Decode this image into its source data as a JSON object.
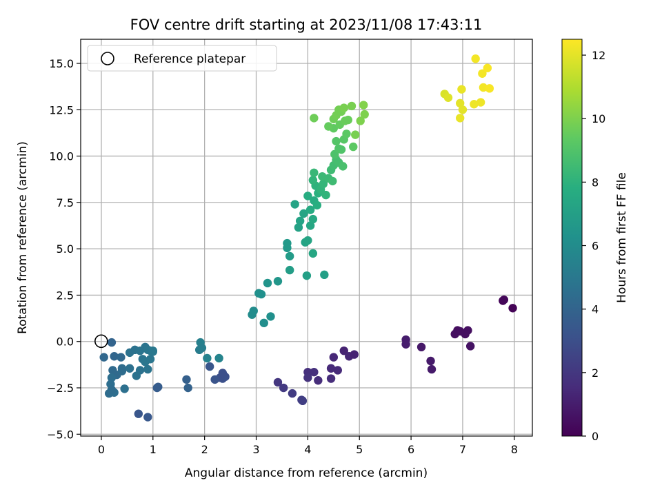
{
  "chart_data": {
    "type": "scatter",
    "title": "FOV centre drift starting at 2023/11/08 17:43:11",
    "xlabel": "Angular distance from reference (arcmin)",
    "ylabel": "Rotation from reference (arcmin)",
    "xlim": [
      -0.4,
      8.35
    ],
    "ylim": [
      -5.1,
      16.3
    ],
    "xticks": [
      0,
      1,
      2,
      3,
      4,
      5,
      6,
      7,
      8
    ],
    "yticks": [
      -5.0,
      -2.5,
      0.0,
      2.5,
      5.0,
      7.5,
      10.0,
      12.5,
      15.0
    ],
    "xtick_labels": [
      "0",
      "1",
      "2",
      "3",
      "4",
      "5",
      "6",
      "7",
      "8"
    ],
    "ytick_labels": [
      "−5.0",
      "−2.5",
      "0.0",
      "2.5",
      "5.0",
      "7.5",
      "10.0",
      "12.5",
      "15.0"
    ],
    "grid": true,
    "legend": {
      "placement": "upper-left",
      "entries": [
        "Reference platepar"
      ]
    },
    "reference_point": {
      "x": 0,
      "y": 0,
      "marker": "open-circle"
    },
    "colorbar": {
      "label": "Hours from first FF file",
      "colormap": "viridis",
      "range": [
        0,
        12.5
      ],
      "ticks": [
        0,
        2,
        4,
        6,
        8,
        10,
        12
      ],
      "tick_labels": [
        "0",
        "2",
        "4",
        "6",
        "8",
        "10",
        "12"
      ]
    },
    "points": [
      {
        "x": 7.78,
        "y": 2.2,
        "h": 0.15
      },
      {
        "x": 7.8,
        "y": 2.25,
        "h": 0.2
      },
      {
        "x": 7.97,
        "y": 1.8,
        "h": 0.1
      },
      {
        "x": 7.1,
        "y": 0.6,
        "h": 0.5
      },
      {
        "x": 7.05,
        "y": 0.4,
        "h": 0.5
      },
      {
        "x": 6.9,
        "y": 0.6,
        "h": 0.45
      },
      {
        "x": 6.85,
        "y": 0.4,
        "h": 0.5
      },
      {
        "x": 6.95,
        "y": 0.55,
        "h": 0.5
      },
      {
        "x": 7.15,
        "y": -0.25,
        "h": 0.6
      },
      {
        "x": 6.2,
        "y": -0.3,
        "h": 0.8
      },
      {
        "x": 6.38,
        "y": -1.05,
        "h": 0.9
      },
      {
        "x": 6.4,
        "y": -1.5,
        "h": 0.9
      },
      {
        "x": 5.9,
        "y": 0.1,
        "h": 0.95
      },
      {
        "x": 5.9,
        "y": -0.15,
        "h": 1.0
      },
      {
        "x": 4.7,
        "y": -0.5,
        "h": 1.2
      },
      {
        "x": 4.8,
        "y": -0.8,
        "h": 1.3
      },
      {
        "x": 4.9,
        "y": -0.7,
        "h": 1.2
      },
      {
        "x": 4.5,
        "y": -0.85,
        "h": 1.4
      },
      {
        "x": 4.45,
        "y": -1.45,
        "h": 1.5
      },
      {
        "x": 4.58,
        "y": -1.55,
        "h": 1.5
      },
      {
        "x": 4.45,
        "y": -2.0,
        "h": 1.6
      },
      {
        "x": 4.2,
        "y": -2.1,
        "h": 1.6
      },
      {
        "x": 4.12,
        "y": -1.65,
        "h": 1.7
      },
      {
        "x": 4.0,
        "y": -1.65,
        "h": 1.7
      },
      {
        "x": 4.0,
        "y": -1.95,
        "h": 1.8
      },
      {
        "x": 3.42,
        "y": -2.2,
        "h": 2.0
      },
      {
        "x": 3.53,
        "y": -2.5,
        "h": 2.1
      },
      {
        "x": 3.7,
        "y": -2.8,
        "h": 2.2
      },
      {
        "x": 3.9,
        "y": -3.2,
        "h": 2.3
      },
      {
        "x": 3.88,
        "y": -3.15,
        "h": 2.3
      },
      {
        "x": 2.4,
        "y": -1.9,
        "h": 3.0
      },
      {
        "x": 2.35,
        "y": -2.0,
        "h": 3.1
      },
      {
        "x": 2.3,
        "y": -1.95,
        "h": 3.0
      },
      {
        "x": 2.35,
        "y": -1.7,
        "h": 3.0
      },
      {
        "x": 2.2,
        "y": -2.05,
        "h": 3.2
      },
      {
        "x": 2.1,
        "y": -1.35,
        "h": 3.3
      },
      {
        "x": 0.72,
        "y": -3.9,
        "h": 3.3
      },
      {
        "x": 0.9,
        "y": -4.08,
        "h": 3.4
      },
      {
        "x": 1.08,
        "y": -2.5,
        "h": 3.6
      },
      {
        "x": 1.1,
        "y": -2.45,
        "h": 3.6
      },
      {
        "x": 1.65,
        "y": -2.05,
        "h": 3.8
      },
      {
        "x": 1.68,
        "y": -2.5,
        "h": 3.9
      },
      {
        "x": 0.2,
        "y": -0.05,
        "h": 4.0
      },
      {
        "x": 0.05,
        "y": -0.85,
        "h": 4.2
      },
      {
        "x": 0.25,
        "y": -0.8,
        "h": 4.1
      },
      {
        "x": 0.38,
        "y": -0.85,
        "h": 4.2
      },
      {
        "x": 0.22,
        "y": -1.55,
        "h": 4.3
      },
      {
        "x": 0.3,
        "y": -1.8,
        "h": 4.3
      },
      {
        "x": 0.4,
        "y": -1.6,
        "h": 4.4
      },
      {
        "x": 0.4,
        "y": -1.45,
        "h": 4.4
      },
      {
        "x": 0.2,
        "y": -1.95,
        "h": 4.5
      },
      {
        "x": 0.18,
        "y": -2.3,
        "h": 4.5
      },
      {
        "x": 0.15,
        "y": -2.8,
        "h": 4.4
      },
      {
        "x": 0.25,
        "y": -2.75,
        "h": 4.5
      },
      {
        "x": 0.2,
        "y": -2.6,
        "h": 4.4
      },
      {
        "x": 0.45,
        "y": -2.55,
        "h": 4.6
      },
      {
        "x": 0.55,
        "y": -0.6,
        "h": 4.7
      },
      {
        "x": 0.65,
        "y": -0.45,
        "h": 4.7
      },
      {
        "x": 0.75,
        "y": -0.5,
        "h": 4.8
      },
      {
        "x": 0.85,
        "y": -0.3,
        "h": 4.8
      },
      {
        "x": 0.9,
        "y": -0.45,
        "h": 4.9
      },
      {
        "x": 0.95,
        "y": -0.5,
        "h": 4.9
      },
      {
        "x": 1.0,
        "y": -0.5,
        "h": 5.0
      },
      {
        "x": 1.0,
        "y": -0.55,
        "h": 5.0
      },
      {
        "x": 0.8,
        "y": -0.95,
        "h": 4.8
      },
      {
        "x": 0.85,
        "y": -1.1,
        "h": 4.9
      },
      {
        "x": 0.95,
        "y": -0.95,
        "h": 4.9
      },
      {
        "x": 0.9,
        "y": -1.5,
        "h": 4.8
      },
      {
        "x": 0.75,
        "y": -1.55,
        "h": 4.7
      },
      {
        "x": 0.68,
        "y": -1.85,
        "h": 4.7
      },
      {
        "x": 0.55,
        "y": -1.45,
        "h": 4.6
      },
      {
        "x": 1.9,
        "y": -0.45,
        "h": 5.2
      },
      {
        "x": 1.92,
        "y": -0.05,
        "h": 5.4
      },
      {
        "x": 1.95,
        "y": -0.35,
        "h": 5.3
      },
      {
        "x": 2.05,
        "y": -0.9,
        "h": 5.5
      },
      {
        "x": 2.28,
        "y": -0.9,
        "h": 5.6
      },
      {
        "x": 2.95,
        "y": 1.65,
        "h": 6.0
      },
      {
        "x": 2.92,
        "y": 1.45,
        "h": 6.0
      },
      {
        "x": 3.05,
        "y": 2.6,
        "h": 6.2
      },
      {
        "x": 3.1,
        "y": 2.55,
        "h": 6.2
      },
      {
        "x": 3.15,
        "y": 1.0,
        "h": 6.1
      },
      {
        "x": 3.28,
        "y": 1.35,
        "h": 6.2
      },
      {
        "x": 3.22,
        "y": 3.15,
        "h": 6.4
      },
      {
        "x": 3.42,
        "y": 3.25,
        "h": 6.5
      },
      {
        "x": 3.6,
        "y": 5.05,
        "h": 6.7
      },
      {
        "x": 3.6,
        "y": 5.3,
        "h": 6.7
      },
      {
        "x": 3.65,
        "y": 4.6,
        "h": 6.8
      },
      {
        "x": 3.65,
        "y": 3.85,
        "h": 6.9
      },
      {
        "x": 3.98,
        "y": 3.55,
        "h": 7.0
      },
      {
        "x": 4.32,
        "y": 3.6,
        "h": 7.0
      },
      {
        "x": 3.75,
        "y": 7.4,
        "h": 7.2
      },
      {
        "x": 3.82,
        "y": 6.15,
        "h": 7.1
      },
      {
        "x": 3.85,
        "y": 6.5,
        "h": 7.2
      },
      {
        "x": 3.92,
        "y": 6.9,
        "h": 7.3
      },
      {
        "x": 3.95,
        "y": 5.35,
        "h": 7.2
      },
      {
        "x": 4.0,
        "y": 5.45,
        "h": 7.3
      },
      {
        "x": 4.05,
        "y": 6.25,
        "h": 7.4
      },
      {
        "x": 4.1,
        "y": 4.75,
        "h": 7.4
      },
      {
        "x": 4.1,
        "y": 6.6,
        "h": 7.5
      },
      {
        "x": 4.05,
        "y": 7.1,
        "h": 7.6
      },
      {
        "x": 4.12,
        "y": 7.6,
        "h": 7.7
      },
      {
        "x": 4.18,
        "y": 7.35,
        "h": 7.8
      },
      {
        "x": 4.0,
        "y": 7.85,
        "h": 7.7
      },
      {
        "x": 4.2,
        "y": 8.0,
        "h": 7.9
      },
      {
        "x": 4.15,
        "y": 8.4,
        "h": 8.0
      },
      {
        "x": 4.1,
        "y": 8.7,
        "h": 8.1
      },
      {
        "x": 4.25,
        "y": 8.2,
        "h": 8.1
      },
      {
        "x": 4.3,
        "y": 8.5,
        "h": 8.2
      },
      {
        "x": 4.35,
        "y": 7.9,
        "h": 8.1
      },
      {
        "x": 4.12,
        "y": 9.1,
        "h": 8.3
      },
      {
        "x": 4.28,
        "y": 8.9,
        "h": 8.4
      },
      {
        "x": 4.4,
        "y": 8.8,
        "h": 8.4
      },
      {
        "x": 4.45,
        "y": 9.25,
        "h": 8.5
      },
      {
        "x": 4.48,
        "y": 8.65,
        "h": 8.5
      },
      {
        "x": 4.5,
        "y": 9.5,
        "h": 8.6
      },
      {
        "x": 4.55,
        "y": 9.8,
        "h": 8.7
      },
      {
        "x": 4.6,
        "y": 9.65,
        "h": 8.7
      },
      {
        "x": 4.68,
        "y": 9.45,
        "h": 8.8
      },
      {
        "x": 4.52,
        "y": 10.1,
        "h": 8.9
      },
      {
        "x": 4.6,
        "y": 10.4,
        "h": 9.0
      },
      {
        "x": 4.65,
        "y": 10.35,
        "h": 9.0
      },
      {
        "x": 4.55,
        "y": 10.8,
        "h": 9.1
      },
      {
        "x": 4.7,
        "y": 10.9,
        "h": 9.2
      },
      {
        "x": 4.75,
        "y": 11.2,
        "h": 9.3
      },
      {
        "x": 4.88,
        "y": 10.5,
        "h": 9.3
      },
      {
        "x": 4.5,
        "y": 11.5,
        "h": 9.4
      },
      {
        "x": 4.4,
        "y": 11.6,
        "h": 9.5
      },
      {
        "x": 4.62,
        "y": 11.7,
        "h": 9.5
      },
      {
        "x": 4.72,
        "y": 11.9,
        "h": 9.6
      },
      {
        "x": 4.78,
        "y": 11.95,
        "h": 9.6
      },
      {
        "x": 4.5,
        "y": 12.0,
        "h": 9.7
      },
      {
        "x": 4.6,
        "y": 12.5,
        "h": 9.8
      },
      {
        "x": 4.65,
        "y": 12.4,
        "h": 9.8
      },
      {
        "x": 4.7,
        "y": 12.6,
        "h": 9.9
      },
      {
        "x": 4.55,
        "y": 12.2,
        "h": 9.8
      },
      {
        "x": 4.85,
        "y": 12.7,
        "h": 9.9
      },
      {
        "x": 4.92,
        "y": 11.15,
        "h": 9.9
      },
      {
        "x": 5.02,
        "y": 11.9,
        "h": 10.0
      },
      {
        "x": 5.08,
        "y": 12.75,
        "h": 10.1
      },
      {
        "x": 5.1,
        "y": 12.25,
        "h": 10.0
      },
      {
        "x": 4.12,
        "y": 12.05,
        "h": 9.7
      },
      {
        "x": 6.65,
        "y": 13.35,
        "h": 11.8
      },
      {
        "x": 6.72,
        "y": 13.15,
        "h": 11.9
      },
      {
        "x": 6.95,
        "y": 12.85,
        "h": 12.0
      },
      {
        "x": 7.0,
        "y": 12.5,
        "h": 12.0
      },
      {
        "x": 6.95,
        "y": 12.05,
        "h": 12.1
      },
      {
        "x": 6.98,
        "y": 13.6,
        "h": 12.1
      },
      {
        "x": 7.25,
        "y": 15.25,
        "h": 12.3
      },
      {
        "x": 7.22,
        "y": 12.8,
        "h": 12.2
      },
      {
        "x": 7.35,
        "y": 12.9,
        "h": 12.2
      },
      {
        "x": 7.38,
        "y": 14.45,
        "h": 12.3
      },
      {
        "x": 7.48,
        "y": 14.75,
        "h": 12.4
      },
      {
        "x": 7.4,
        "y": 13.7,
        "h": 12.3
      },
      {
        "x": 7.52,
        "y": 13.65,
        "h": 12.4
      }
    ]
  }
}
